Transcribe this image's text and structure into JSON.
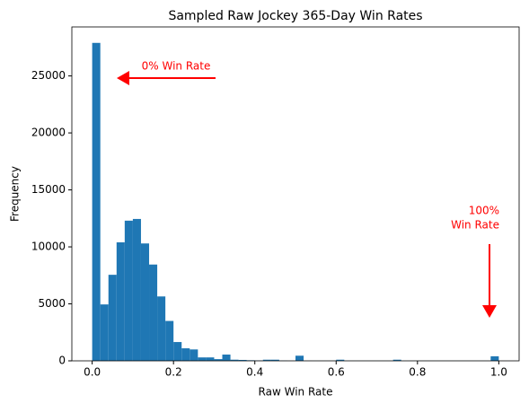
{
  "chart_data": {
    "type": "histogram",
    "title": "Sampled Raw Jockey 365-Day Win Rates",
    "x_label": "Raw Win Rate",
    "y_label": "Frequency",
    "color": "#1f77b4",
    "bins": [
      0,
      0.02,
      0.04,
      0.06,
      0.08,
      0.1,
      0.12,
      0.14,
      0.16,
      0.18,
      0.2,
      0.22,
      0.24,
      0.26,
      0.28,
      0.3,
      0.32,
      0.34,
      0.36,
      0.38,
      0.4,
      0.42,
      0.44,
      0.46,
      0.48,
      0.5,
      0.52,
      0.54,
      0.56,
      0.58,
      0.6,
      0.62,
      0.64,
      0.66,
      0.68,
      0.7,
      0.72,
      0.74,
      0.76,
      0.78,
      0.8,
      0.82,
      0.84,
      0.86,
      0.88,
      0.9,
      0.92,
      0.94,
      0.96,
      0.98,
      1
    ],
    "counts": [
      27900,
      4950,
      7550,
      10400,
      12300,
      12450,
      10300,
      8450,
      5650,
      3500,
      1650,
      1100,
      1000,
      300,
      300,
      150,
      550,
      100,
      80,
      50,
      30,
      100,
      100,
      20,
      10,
      450,
      10,
      5,
      5,
      5,
      100,
      5,
      5,
      5,
      5,
      5,
      5,
      100,
      5,
      5,
      5,
      5,
      5,
      5,
      5,
      5,
      5,
      5,
      5,
      400
    ],
    "xlim": [
      -0.05,
      1.05
    ],
    "ylim": [
      0,
      29300
    ],
    "xticks": [
      {
        "value": 0,
        "label": "0.0"
      },
      {
        "value": 0.2,
        "label": "0.2"
      },
      {
        "value": 0.4,
        "label": "0.4"
      },
      {
        "value": 0.6,
        "label": "0.6"
      },
      {
        "value": 0.8,
        "label": "0.8"
      },
      {
        "value": 1,
        "label": "1.0"
      }
    ],
    "yticks": [
      0,
      5000,
      10000,
      15000,
      20000,
      25000
    ],
    "annotations": [
      {
        "text": [
          "0% Win Rate"
        ],
        "color": "#ff0000"
      },
      {
        "text": [
          "100%",
          "Win Rate"
        ],
        "color": "#ff0000"
      }
    ]
  }
}
